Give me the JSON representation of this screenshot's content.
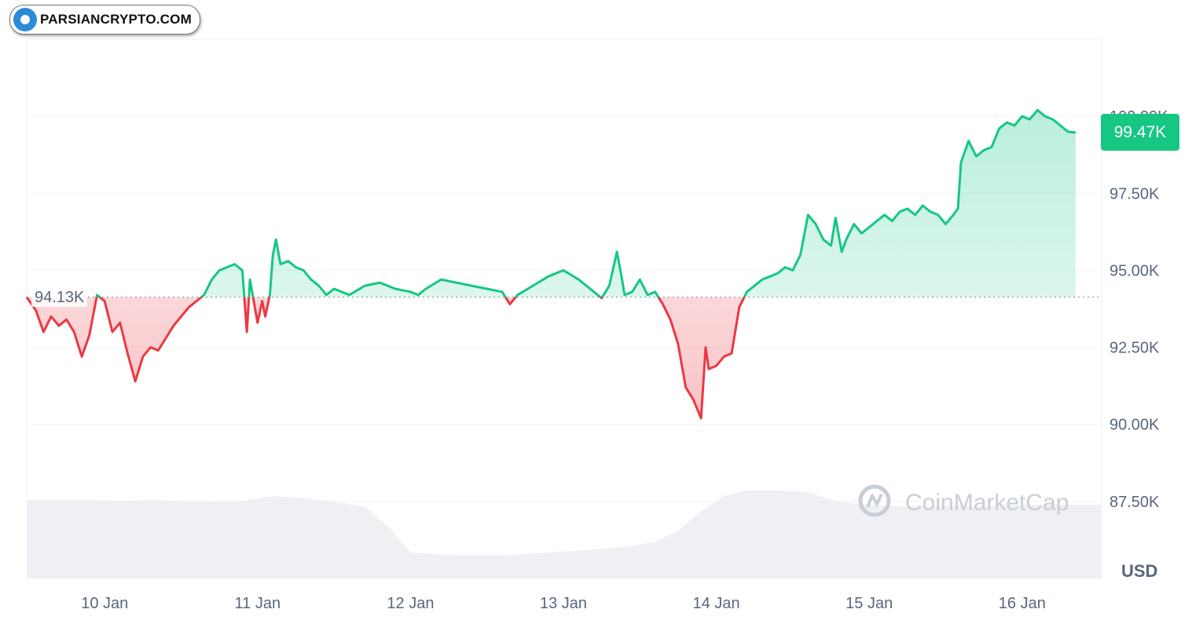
{
  "brand": {
    "text": "PARSIANCRYPTO.COM",
    "logo_icon": "parsiancrypto-logo-icon"
  },
  "watermark": {
    "text": "CoinMarketCap",
    "icon": "coinmarketcap-logo-icon"
  },
  "current_price_label": "99.47K",
  "reference_label": "94.13K",
  "colors": {
    "up": "#16c784",
    "down": "#ea3943",
    "volume": "#eef0f3",
    "grid": "#eff2f5"
  },
  "chart_data": {
    "type": "area",
    "unit_label": "USD",
    "x_ticks": [
      "10 Jan",
      "11 Jan",
      "12 Jan",
      "13 Jan",
      "14 Jan",
      "15 Jan",
      "16 Jan"
    ],
    "y_ticks": [
      "100.00K",
      "97.50K",
      "95.00K",
      "92.50K",
      "90.00K",
      "87.50K"
    ],
    "y_tick_values": [
      100000,
      97500,
      95000,
      92500,
      90000,
      87500
    ],
    "ylim": [
      85000,
      102500
    ],
    "x_start_day": 9.49,
    "x_end_day": 16.52,
    "reference_value": 94130,
    "current_value": 99470,
    "grid": true,
    "series": [
      {
        "values": [
          [
            9.49,
            94130
          ],
          [
            9.55,
            93700
          ],
          [
            9.6,
            93000
          ],
          [
            9.65,
            93500
          ],
          [
            9.7,
            93200
          ],
          [
            9.75,
            93400
          ],
          [
            9.8,
            93000
          ],
          [
            9.85,
            92200
          ],
          [
            9.9,
            92900
          ],
          [
            9.95,
            94200
          ],
          [
            10.0,
            94000
          ],
          [
            10.05,
            93000
          ],
          [
            10.1,
            93300
          ],
          [
            10.15,
            92300
          ],
          [
            10.2,
            91400
          ],
          [
            10.25,
            92200
          ],
          [
            10.3,
            92500
          ],
          [
            10.35,
            92400
          ],
          [
            10.4,
            92800
          ],
          [
            10.45,
            93200
          ],
          [
            10.5,
            93500
          ],
          [
            10.55,
            93800
          ],
          [
            10.6,
            94000
          ],
          [
            10.65,
            94200
          ],
          [
            10.7,
            94700
          ],
          [
            10.75,
            95000
          ],
          [
            10.8,
            95100
          ],
          [
            10.85,
            95200
          ],
          [
            10.9,
            95000
          ],
          [
            10.93,
            93000
          ],
          [
            10.95,
            94700
          ],
          [
            11.0,
            93300
          ],
          [
            11.03,
            94000
          ],
          [
            11.05,
            93500
          ],
          [
            11.08,
            94200
          ],
          [
            11.1,
            95500
          ],
          [
            11.12,
            96000
          ],
          [
            11.15,
            95200
          ],
          [
            11.2,
            95300
          ],
          [
            11.25,
            95100
          ],
          [
            11.3,
            95000
          ],
          [
            11.35,
            94700
          ],
          [
            11.4,
            94500
          ],
          [
            11.45,
            94200
          ],
          [
            11.5,
            94400
          ],
          [
            11.55,
            94300
          ],
          [
            11.6,
            94200
          ],
          [
            11.7,
            94500
          ],
          [
            11.8,
            94600
          ],
          [
            11.9,
            94400
          ],
          [
            12.0,
            94300
          ],
          [
            12.05,
            94200
          ],
          [
            12.1,
            94400
          ],
          [
            12.2,
            94700
          ],
          [
            12.3,
            94600
          ],
          [
            12.4,
            94500
          ],
          [
            12.5,
            94400
          ],
          [
            12.6,
            94300
          ],
          [
            12.65,
            93900
          ],
          [
            12.7,
            94200
          ],
          [
            12.8,
            94500
          ],
          [
            12.9,
            94800
          ],
          [
            13.0,
            95000
          ],
          [
            13.1,
            94700
          ],
          [
            13.2,
            94300
          ],
          [
            13.25,
            94100
          ],
          [
            13.3,
            94500
          ],
          [
            13.35,
            95600
          ],
          [
            13.38,
            94800
          ],
          [
            13.4,
            94200
          ],
          [
            13.45,
            94300
          ],
          [
            13.5,
            94700
          ],
          [
            13.55,
            94200
          ],
          [
            13.6,
            94300
          ],
          [
            13.65,
            93900
          ],
          [
            13.7,
            93400
          ],
          [
            13.75,
            92600
          ],
          [
            13.8,
            91200
          ],
          [
            13.85,
            90800
          ],
          [
            13.9,
            90200
          ],
          [
            13.93,
            92500
          ],
          [
            13.95,
            91800
          ],
          [
            14.0,
            91900
          ],
          [
            14.05,
            92200
          ],
          [
            14.1,
            92300
          ],
          [
            14.15,
            93800
          ],
          [
            14.2,
            94300
          ],
          [
            14.25,
            94500
          ],
          [
            14.3,
            94700
          ],
          [
            14.35,
            94800
          ],
          [
            14.4,
            94900
          ],
          [
            14.45,
            95100
          ],
          [
            14.5,
            95000
          ],
          [
            14.55,
            95500
          ],
          [
            14.6,
            96800
          ],
          [
            14.65,
            96500
          ],
          [
            14.7,
            96000
          ],
          [
            14.75,
            95800
          ],
          [
            14.78,
            96700
          ],
          [
            14.82,
            95600
          ],
          [
            14.85,
            96000
          ],
          [
            14.9,
            96500
          ],
          [
            14.95,
            96200
          ],
          [
            15.0,
            96400
          ],
          [
            15.05,
            96600
          ],
          [
            15.1,
            96800
          ],
          [
            15.15,
            96600
          ],
          [
            15.2,
            96900
          ],
          [
            15.25,
            97000
          ],
          [
            15.3,
            96800
          ],
          [
            15.35,
            97100
          ],
          [
            15.4,
            96900
          ],
          [
            15.45,
            96800
          ],
          [
            15.5,
            96500
          ],
          [
            15.55,
            96800
          ],
          [
            15.58,
            97000
          ],
          [
            15.6,
            98500
          ],
          [
            15.65,
            99200
          ],
          [
            15.7,
            98700
          ],
          [
            15.75,
            98900
          ],
          [
            15.8,
            99000
          ],
          [
            15.85,
            99600
          ],
          [
            15.9,
            99800
          ],
          [
            15.95,
            99700
          ],
          [
            16.0,
            100000
          ],
          [
            16.05,
            99900
          ],
          [
            16.1,
            100200
          ],
          [
            16.15,
            100000
          ],
          [
            16.2,
            99900
          ],
          [
            16.25,
            99700
          ],
          [
            16.3,
            99500
          ],
          [
            16.35,
            99470
          ]
        ]
      }
    ],
    "volume": [
      [
        9.49,
        0.82
      ],
      [
        9.7,
        0.82
      ],
      [
        9.9,
        0.82
      ],
      [
        10.1,
        0.81
      ],
      [
        10.3,
        0.82
      ],
      [
        10.5,
        0.81
      ],
      [
        10.7,
        0.8
      ],
      [
        10.9,
        0.81
      ],
      [
        11.1,
        0.86
      ],
      [
        11.3,
        0.84
      ],
      [
        11.5,
        0.8
      ],
      [
        11.7,
        0.75
      ],
      [
        11.85,
        0.55
      ],
      [
        12.0,
        0.27
      ],
      [
        12.2,
        0.25
      ],
      [
        12.4,
        0.24
      ],
      [
        12.6,
        0.24
      ],
      [
        12.8,
        0.26
      ],
      [
        13.0,
        0.28
      ],
      [
        13.2,
        0.3
      ],
      [
        13.4,
        0.33
      ],
      [
        13.6,
        0.38
      ],
      [
        13.75,
        0.5
      ],
      [
        13.9,
        0.7
      ],
      [
        14.05,
        0.86
      ],
      [
        14.2,
        0.92
      ],
      [
        14.4,
        0.92
      ],
      [
        14.6,
        0.9
      ],
      [
        14.75,
        0.82
      ],
      [
        14.9,
        0.78
      ],
      [
        15.1,
        0.76
      ],
      [
        15.3,
        0.75
      ],
      [
        15.5,
        0.76
      ],
      [
        15.7,
        0.75
      ],
      [
        15.85,
        0.76
      ],
      [
        16.0,
        0.77
      ],
      [
        16.2,
        0.77
      ],
      [
        16.35,
        0.77
      ],
      [
        16.52,
        0.77
      ]
    ]
  }
}
